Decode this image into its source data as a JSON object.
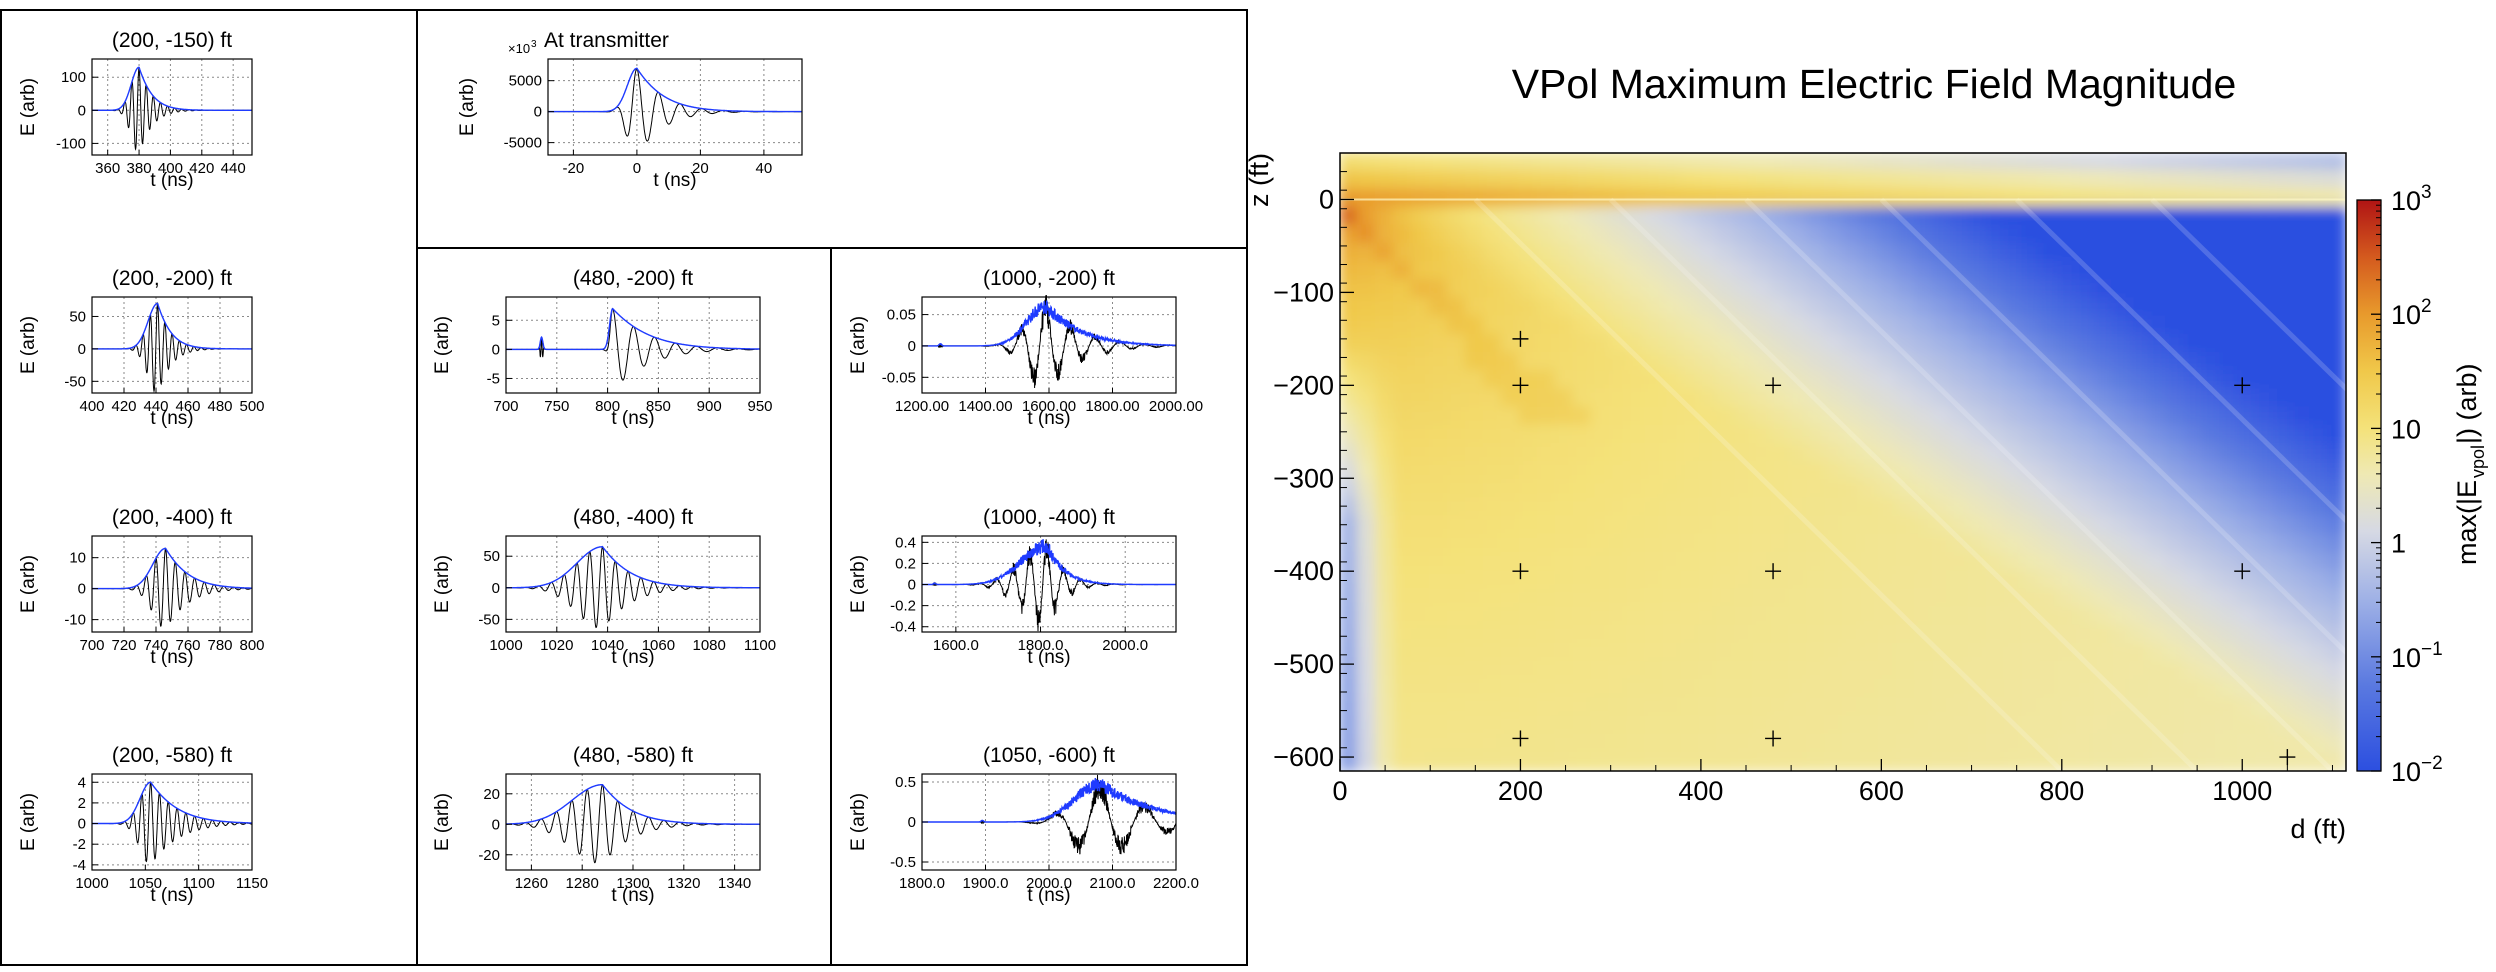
{
  "panels": [
    {
      "title": "(200, -150) ft",
      "ylabel": "E (arb)",
      "xlabel": "t (ns)",
      "xlim": [
        350,
        452
      ],
      "xticks": [
        360,
        380,
        400,
        420,
        440
      ],
      "ylim": [
        -135,
        155
      ],
      "yticks": [
        -100,
        0,
        100
      ],
      "peak": 380,
      "amp": 130,
      "width": 4.5,
      "freq": 0.45,
      "env_rise": 5,
      "env_decay": 6
    },
    {
      "title": "At transmitter",
      "ylabel": "E (arb)",
      "xlabel": "t (ns)",
      "multiplier": "×10",
      "multiplier_exp": "3",
      "xlim": [
        -28,
        52
      ],
      "xticks": [
        -20,
        0,
        20,
        40
      ],
      "ylim": [
        -7000,
        8500
      ],
      "yticks": [
        -5000,
        0,
        5000
      ],
      "peak": 0,
      "amp": 7000,
      "width": 3,
      "freq": 0.2,
      "env_rise": 3,
      "env_decay": 6
    },
    {
      "title": "(200, -200) ft",
      "ylabel": "E (arb)",
      "xlabel": "t (ns)",
      "xlim": [
        400,
        500
      ],
      "xticks": [
        400,
        420,
        440,
        460,
        480,
        500
      ],
      "ylim": [
        -68,
        80
      ],
      "yticks": [
        -50,
        0,
        50
      ],
      "peak": 441,
      "amp": 70,
      "width": 4.5,
      "freq": 0.45,
      "env_rise": 6,
      "env_decay": 6
    },
    {
      "title": "(480, -200) ft",
      "ylabel": "E (arb)",
      "xlabel": "t (ns)",
      "xlim": [
        700,
        950
      ],
      "xticks": [
        700,
        750,
        800,
        850,
        900,
        950
      ],
      "ylim": [
        -7.5,
        9
      ],
      "yticks": [
        -5,
        0,
        5
      ],
      "peak": 805,
      "amp": 7,
      "width": 10,
      "freq": 0.22,
      "env_rise": 3,
      "env_decay": 25,
      "echo": [
        735,
        0.3
      ]
    },
    {
      "title": "(1000, -200) ft",
      "ylabel": "E (arb)",
      "xlabel": "t (ns)",
      "xlim": [
        1200,
        2000
      ],
      "xticks": [
        1200,
        1400,
        1600,
        1800,
        2000
      ],
      "ylim": [
        -0.075,
        0.078
      ],
      "yticks": [
        -0.05,
        0,
        0.05
      ],
      "tickfmt": "2",
      "peak": 1590,
      "amp": 0.06,
      "width": 60,
      "freq": 0.35,
      "env_rise": 60,
      "env_decay": 80,
      "echo": [
        1258,
        0.05
      ],
      "noisy": true
    },
    {
      "title": "(200, -400) ft",
      "ylabel": "E (arb)",
      "xlabel": "t (ns)",
      "xlim": [
        700,
        800
      ],
      "xticks": [
        700,
        720,
        740,
        760,
        780,
        800
      ],
      "ylim": [
        -14,
        17
      ],
      "yticks": [
        -10,
        0,
        10
      ],
      "peak": 746,
      "amp": 13,
      "width": 6,
      "freq": 0.45,
      "env_rise": 8,
      "env_decay": 10
    },
    {
      "title": "(480, -400) ft",
      "ylabel": "E (arb)",
      "xlabel": "t (ns)",
      "xlim": [
        1000,
        1100
      ],
      "xticks": [
        1000,
        1020,
        1040,
        1060,
        1080,
        1100
      ],
      "ylim": [
        -70,
        82
      ],
      "yticks": [
        -50,
        0,
        50
      ],
      "peak": 1038,
      "amp": 65,
      "width": 5,
      "freq": 0.45,
      "env_rise": 10,
      "env_decay": 8
    },
    {
      "title": "(1000, -400) ft",
      "ylabel": "E (arb)",
      "xlabel": "t (ns)",
      "xlim": [
        1520,
        2120
      ],
      "xticks": [
        1600,
        1800,
        2000
      ],
      "ylim": [
        -0.45,
        0.46
      ],
      "yticks": [
        -0.4,
        -0.2,
        0,
        0.2,
        0.4
      ],
      "tickfmt": "1",
      "peak": 1815,
      "amp": 0.35,
      "width": 35,
      "freq": 0.4,
      "env_rise": 60,
      "env_decay": 30,
      "echo": [
        1550,
        0.03
      ],
      "noisy": true
    },
    {
      "title": "(200, -580) ft",
      "ylabel": "E (arb)",
      "xlabel": "t (ns)",
      "xlim": [
        1000,
        1150
      ],
      "xticks": [
        1000,
        1050,
        1100,
        1150
      ],
      "ylim": [
        -4.5,
        4.8
      ],
      "yticks": [
        -4,
        -2,
        0,
        2,
        4
      ],
      "peak": 1055,
      "amp": 4,
      "width": 10,
      "freq": 0.55,
      "env_rise": 10,
      "env_decay": 18
    },
    {
      "title": "(480, -580) ft",
      "ylabel": "E (arb)",
      "xlabel": "t (ns)",
      "xlim": [
        1250,
        1350
      ],
      "xticks": [
        1260,
        1280,
        1300,
        1320,
        1340
      ],
      "ylim": [
        -30,
        33
      ],
      "yticks": [
        -20,
        0,
        20
      ],
      "peak": 1288,
      "amp": 26,
      "width": 6,
      "freq": 0.45,
      "env_rise": 12,
      "env_decay": 8
    },
    {
      "title": "(1050, -600) ft",
      "ylabel": "E (arb)",
      "xlabel": "t (ns)",
      "xlim": [
        1800,
        2200
      ],
      "xticks": [
        1800,
        1900,
        2000,
        2100,
        2200
      ],
      "ylim": [
        -0.6,
        0.6
      ],
      "yticks": [
        -0.5,
        0,
        0.5
      ],
      "tickfmt": "1",
      "peak": 2080,
      "amp": 0.45,
      "width": 55,
      "freq": 0.35,
      "env_rise": 40,
      "env_decay": 60,
      "echo": [
        1895,
        0.04
      ],
      "noisy": true
    }
  ],
  "chart_data": {
    "type": "heatmap",
    "title": "VPol Maximum Electric Field Magnitude",
    "xlabel": "d (ft)",
    "ylabel": "z (ft)",
    "xlim": [
      0,
      1115
    ],
    "ylim": [
      -615,
      50
    ],
    "xticks": [
      0,
      200,
      400,
      600,
      800,
      1000
    ],
    "yticks": [
      0,
      -100,
      -200,
      -300,
      -400,
      -500,
      -600
    ],
    "colorbar": {
      "label": "max(|E",
      "label_sub": "vpol",
      "label_tail": "|) (arb)",
      "range": [
        -2,
        3
      ],
      "ticks": [
        {
          "base": "10",
          "exp": "3",
          "v": 3
        },
        {
          "base": "10",
          "exp": "2",
          "v": 2
        },
        {
          "base": "10",
          "exp": "",
          "v": 1
        },
        {
          "base": "1",
          "exp": "",
          "v": 0
        },
        {
          "base": "10",
          "exp": "−1",
          "v": -1
        },
        {
          "base": "10",
          "exp": "−2",
          "v": -2
        }
      ]
    },
    "markers": [
      [
        200,
        -150
      ],
      [
        200,
        -200
      ],
      [
        480,
        -200
      ],
      [
        1000,
        -200
      ],
      [
        200,
        -400
      ],
      [
        480,
        -400
      ],
      [
        1000,
        -400
      ],
      [
        200,
        -580
      ],
      [
        480,
        -580
      ],
      [
        1050,
        -600
      ]
    ],
    "colormap": [
      "#2c4fe0",
      "#5a79e0",
      "#9fb1e6",
      "#d6d9e4",
      "#efe9b3",
      "#f4e27a",
      "#f0c84a",
      "#e89a2c",
      "#d45a1e",
      "#b01414"
    ]
  },
  "colors": {
    "trace": "#000000",
    "envelope": "#1f3bff",
    "grid": "#8a8a8a"
  }
}
